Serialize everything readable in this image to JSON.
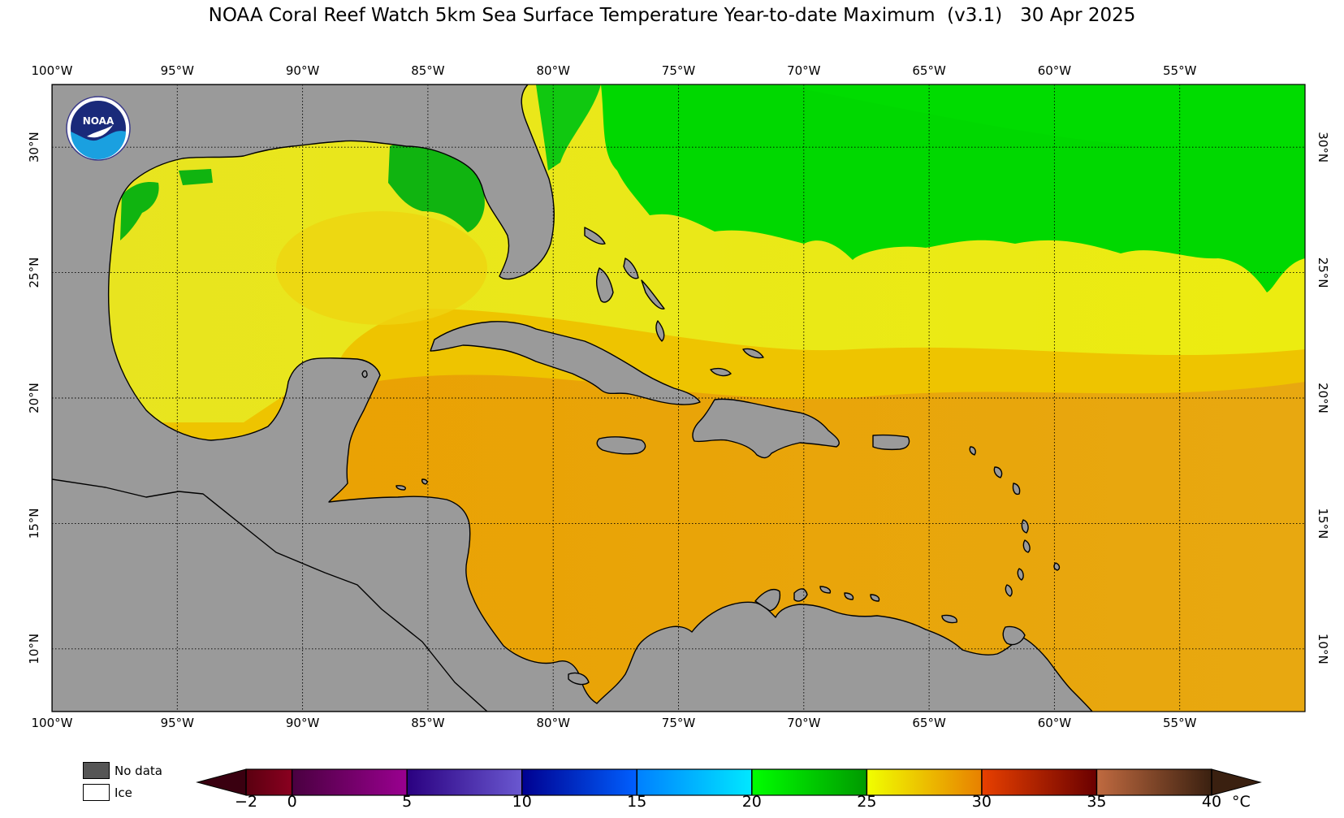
{
  "title": "NOAA Coral Reef Watch 5km Sea Surface Temperature Year-to-date Maximum  (v3.1)   30 Apr 2025",
  "logo": {
    "name": "noaa-logo",
    "text": "NOAA"
  },
  "map": {
    "lon_range": [
      -100,
      -50
    ],
    "lat_range": [
      7.5,
      32.5
    ],
    "lon_ticks": [
      {
        "value": -100,
        "label": "100°W"
      },
      {
        "value": -95,
        "label": "95°W"
      },
      {
        "value": -90,
        "label": "90°W"
      },
      {
        "value": -85,
        "label": "85°W"
      },
      {
        "value": -80,
        "label": "80°W"
      },
      {
        "value": -75,
        "label": "75°W"
      },
      {
        "value": -70,
        "label": "70°W"
      },
      {
        "value": -65,
        "label": "65°W"
      },
      {
        "value": -60,
        "label": "60°W"
      },
      {
        "value": -55,
        "label": "55°W"
      }
    ],
    "lat_ticks": [
      {
        "value": 30,
        "label": "30°N"
      },
      {
        "value": 25,
        "label": "25°N"
      },
      {
        "value": 20,
        "label": "20°N"
      },
      {
        "value": 15,
        "label": "15°N"
      },
      {
        "value": 10,
        "label": "10°N"
      }
    ],
    "gridlines": "dotted",
    "colors": {
      "land": "#9a9a9a",
      "coast": "#000000"
    }
  },
  "legend": {
    "no_data": {
      "label": "No data",
      "color": "#555555"
    },
    "ice": {
      "label": "Ice",
      "color": "#ffffff"
    }
  },
  "colorbar": {
    "unit": "°C",
    "min": -2,
    "max": 40,
    "extend": "both",
    "ticks": [
      {
        "value": -2,
        "label": "−2"
      },
      {
        "value": 0,
        "label": "0"
      },
      {
        "value": 5,
        "label": "5"
      },
      {
        "value": 10,
        "label": "10"
      },
      {
        "value": 15,
        "label": "15"
      },
      {
        "value": 20,
        "label": "20"
      },
      {
        "value": 25,
        "label": "25"
      },
      {
        "value": 30,
        "label": "30"
      },
      {
        "value": 35,
        "label": "35"
      },
      {
        "value": 40,
        "label": "40"
      }
    ],
    "segments": [
      {
        "from": -2,
        "to": 0,
        "colors": [
          "#5a0010",
          "#8a0020"
        ]
      },
      {
        "from": 0,
        "to": 5,
        "colors": [
          "#4a0040",
          "#9a0090"
        ]
      },
      {
        "from": 5,
        "to": 10,
        "colors": [
          "#2a0080",
          "#6a58d0"
        ]
      },
      {
        "from": 10,
        "to": 15,
        "colors": [
          "#000090",
          "#0060ff"
        ]
      },
      {
        "from": 15,
        "to": 20,
        "colors": [
          "#0080ff",
          "#00e8ff"
        ]
      },
      {
        "from": 20,
        "to": 25,
        "colors": [
          "#00ff00",
          "#009a00"
        ]
      },
      {
        "from": 25,
        "to": 30,
        "colors": [
          "#f0ff00",
          "#e88000"
        ]
      },
      {
        "from": 30,
        "to": 35,
        "colors": [
          "#e84000",
          "#6a0000"
        ]
      },
      {
        "from": 35,
        "to": 40,
        "colors": [
          "#c06a40",
          "#3a2010"
        ]
      }
    ],
    "under_color": "#3a0010",
    "over_color": "#3a2010"
  }
}
